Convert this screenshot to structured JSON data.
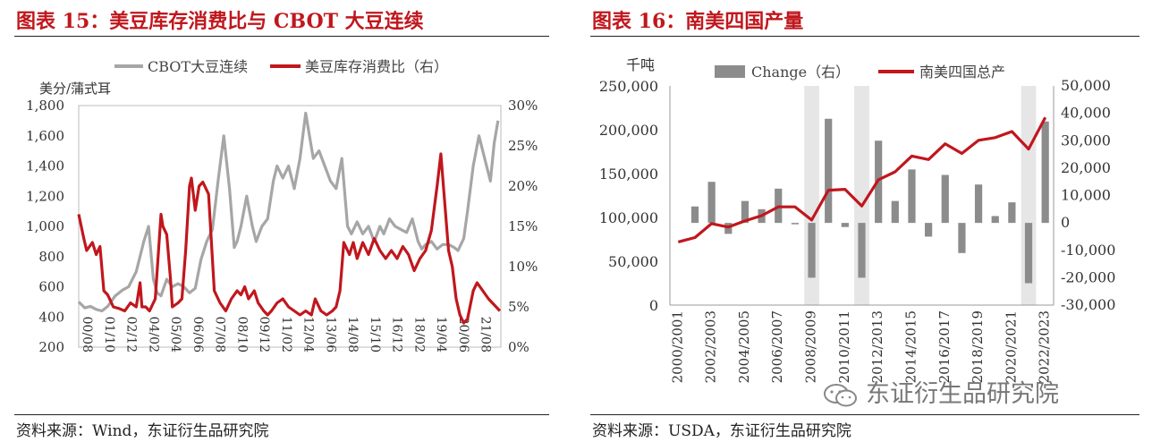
{
  "left": {
    "title": "图表 15：美豆库存消费比与 CBOT 大豆连续",
    "source": "资料来源：Wind，东证衍生品研究院"
  },
  "right": {
    "title": "图表 16：南美四国产量",
    "source": "资料来源：USDA，东证衍生品研究院",
    "watermark": "东证衍生品研究院"
  },
  "colors": {
    "cbot": "#a6a6a6",
    "ratio": "#c0171d",
    "bar": "#8c8c8c",
    "shade": "#e6e6e6",
    "title": "#c0171d"
  },
  "chart_data": [
    {
      "type": "line",
      "ylabel": "美分/蒲式耳",
      "categories": [
        "00/08",
        "01/10",
        "02/12",
        "04/02",
        "05/04",
        "06/06",
        "07/08",
        "08/10",
        "09/12",
        "11/02",
        "12/04",
        "13/06",
        "14/08",
        "15/10",
        "16/12",
        "18/02",
        "19/04",
        "20/06",
        "21/08"
      ],
      "ylim": [
        200,
        1800
      ],
      "yticks": [
        "200",
        "400",
        "600",
        "800",
        "1,000",
        "1,200",
        "1,400",
        "1,600",
        "1,800"
      ],
      "y2lim": [
        0,
        30
      ],
      "y2ticks": [
        "0%",
        "5%",
        "10%",
        "15%",
        "20%",
        "25%",
        "30%"
      ],
      "legend_position": "top",
      "series": [
        {
          "name": "CBOT大豆连续",
          "axis": "left",
          "color": "#a6a6a6",
          "x": [
            2000.58,
            2000.9,
            2001.2,
            2001.5,
            2001.8,
            2002.1,
            2002.5,
            2002.9,
            2003.2,
            2003.6,
            2004.0,
            2004.25,
            2004.5,
            2004.7,
            2004.9,
            2005.2,
            2005.5,
            2005.8,
            2006.1,
            2006.4,
            2006.7,
            2007.0,
            2007.3,
            2007.6,
            2007.9,
            2008.2,
            2008.5,
            2008.75,
            2008.9,
            2009.1,
            2009.4,
            2009.7,
            2009.9,
            2010.2,
            2010.5,
            2010.8,
            2011.0,
            2011.3,
            2011.6,
            2011.9,
            2012.2,
            2012.5,
            2012.7,
            2012.9,
            2013.2,
            2013.5,
            2013.8,
            2014.1,
            2014.4,
            2014.7,
            2014.9,
            2015.2,
            2015.5,
            2015.8,
            2016.1,
            2016.4,
            2016.6,
            2016.9,
            2017.2,
            2017.5,
            2017.8,
            2018.1,
            2018.4,
            2018.6,
            2018.8,
            2019.1,
            2019.4,
            2019.7,
            2020.0,
            2020.3,
            2020.5,
            2020.8,
            2021.0,
            2021.3,
            2021.6,
            2021.9,
            2022.2,
            2022.4,
            2022.6
          ],
          "values": [
            500,
            460,
            470,
            450,
            440,
            470,
            540,
            580,
            600,
            700,
            900,
            1000,
            650,
            560,
            540,
            650,
            600,
            620,
            600,
            560,
            590,
            780,
            900,
            980,
            1300,
            1600,
            1250,
            860,
            900,
            1000,
            1200,
            1000,
            900,
            1000,
            1050,
            1300,
            1400,
            1320,
            1400,
            1250,
            1450,
            1750,
            1600,
            1450,
            1500,
            1400,
            1300,
            1250,
            1450,
            1000,
            950,
            1030,
            950,
            1000,
            900,
            1000,
            950,
            1050,
            1000,
            980,
            960,
            1050,
            900,
            850,
            880,
            900,
            850,
            880,
            880,
            860,
            840,
            920,
            1100,
            1400,
            1600,
            1450,
            1300,
            1550,
            1700
          ]
        },
        {
          "name": "美豆库存消费比（右）",
          "axis": "right",
          "color": "#c0171d",
          "x": [
            2000.58,
            2000.85,
            2001.0,
            2001.3,
            2001.5,
            2001.7,
            2001.9,
            2002.1,
            2002.4,
            2002.7,
            2003.0,
            2003.3,
            2003.6,
            2003.8,
            2003.9,
            2004.1,
            2004.3,
            2004.6,
            2004.9,
            2005.0,
            2005.2,
            2005.4,
            2005.5,
            2005.8,
            2006.0,
            2006.2,
            2006.4,
            2006.5,
            2006.7,
            2006.9,
            2007.1,
            2007.4,
            2007.7,
            2008.0,
            2008.3,
            2008.6,
            2008.9,
            2009.1,
            2009.3,
            2009.5,
            2009.8,
            2010.0,
            2010.3,
            2010.5,
            2010.7,
            2011.0,
            2011.3,
            2011.6,
            2011.9,
            2012.2,
            2012.5,
            2012.8,
            2013.0,
            2013.3,
            2013.6,
            2013.9,
            2014.1,
            2014.3,
            2014.5,
            2014.8,
            2015.0,
            2015.2,
            2015.5,
            2015.8,
            2016.1,
            2016.4,
            2016.7,
            2017.0,
            2017.3,
            2017.6,
            2017.9,
            2018.2,
            2018.5,
            2018.8,
            2019.1,
            2019.4,
            2019.6,
            2019.8,
            2020.0,
            2020.2,
            2020.4,
            2020.6,
            2020.8,
            2021.0,
            2021.3,
            2021.5,
            2021.8,
            2022.1,
            2022.3,
            2022.5,
            2022.7
          ],
          "values": [
            16.5,
            13.5,
            12.0,
            13.0,
            11.5,
            12.5,
            7.0,
            6.5,
            5.0,
            4.8,
            4.5,
            5.5,
            5.0,
            8.0,
            5.0,
            5.0,
            4.5,
            6.0,
            16.5,
            15.0,
            14.0,
            8.5,
            5.0,
            5.5,
            6.0,
            12.0,
            20.0,
            21.0,
            17.0,
            20.0,
            20.5,
            19.0,
            7.0,
            5.5,
            4.5,
            6.0,
            7.0,
            6.5,
            7.5,
            6.0,
            7.0,
            5.5,
            4.5,
            4.0,
            4.5,
            5.5,
            6.0,
            5.0,
            4.5,
            4.0,
            4.5,
            4.0,
            6.0,
            4.5,
            4.0,
            4.5,
            5.0,
            7.0,
            13.0,
            11.5,
            13.0,
            11.0,
            13.0,
            11.5,
            13.5,
            12.0,
            11.0,
            12.0,
            11.0,
            12.5,
            11.5,
            9.5,
            11.0,
            12.0,
            14.5,
            20.0,
            24.0,
            18.0,
            12.0,
            10.0,
            6.0,
            4.0,
            3.0,
            3.5,
            7.0,
            8.0,
            7.0,
            6.0,
            5.5,
            5.0,
            4.5
          ]
        }
      ]
    },
    {
      "type": "bar",
      "ylabel": "千吨",
      "categories": [
        "2000/2001",
        "2001/2002",
        "2002/2003",
        "2003/2004",
        "2004/2005",
        "2005/2006",
        "2006/2007",
        "2007/2008",
        "2008/2009",
        "2009/2010",
        "2010/2011",
        "2011/2012",
        "2012/2013",
        "2013/2014",
        "2014/2015",
        "2015/2016",
        "2016/2017",
        "2017/2018",
        "2018/2019",
        "2019/2020",
        "2020/2021",
        "2021/2022",
        "2022/2023"
      ],
      "category_labels": [
        "2000/2001",
        "2002/2003",
        "2004/2005",
        "2006/2007",
        "2008/2009",
        "2010/2011",
        "2012/2013",
        "2014/2015",
        "2016/2017",
        "2018/2019",
        "2020/2021",
        "2022/2023"
      ],
      "ylim": [
        0,
        250000
      ],
      "yticks": [
        "0",
        "50,000",
        "100,000",
        "150,000",
        "200,000",
        "250,000"
      ],
      "y2lim": [
        -30000,
        50000
      ],
      "y2ticks": [
        "-30,000",
        "-20,000",
        "-10,000",
        "0",
        "10,000",
        "20,000",
        "30,000",
        "40,000",
        "50,000"
      ],
      "shaded_categories": [
        "2008/2009",
        "2011/2012",
        "2021/2022"
      ],
      "legend_position": "top",
      "series": [
        {
          "name": "Change（右）",
          "axis": "right",
          "color": "#8c8c8c",
          "values": [
            null,
            6000,
            15000,
            -4000,
            8000,
            5000,
            12500,
            -500,
            -20000,
            38000,
            -1500,
            -20000,
            30000,
            8000,
            19500,
            -5000,
            17500,
            -11000,
            14000,
            2500,
            7500,
            -22000,
            37000
          ]
        },
        {
          "name": "南美四国总产",
          "axis": "left",
          "color": "#c0171d",
          "values": [
            72000,
            77000,
            93000,
            89000,
            96000,
            102000,
            112000,
            112000,
            97000,
            131000,
            132000,
            113000,
            143000,
            152000,
            170000,
            166000,
            184000,
            173000,
            188000,
            191000,
            198000,
            178000,
            214000
          ]
        }
      ]
    }
  ]
}
